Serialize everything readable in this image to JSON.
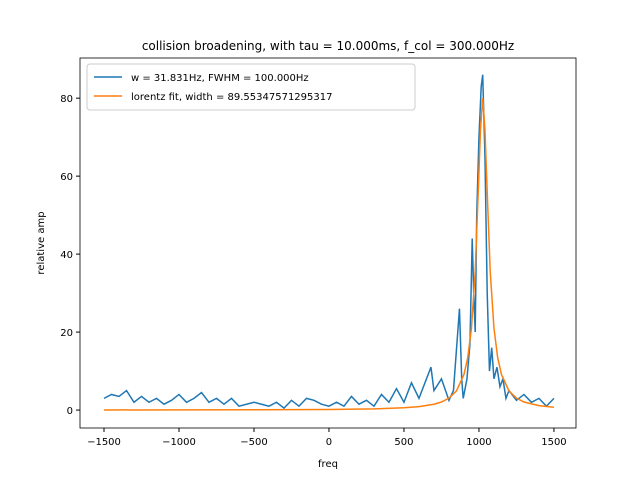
{
  "chart_data": {
    "type": "line",
    "title": "collision broadening, with tau = 10.000ms, f_col = 300.000Hz",
    "x_label": "freq",
    "y_label": "relative amp",
    "xlim": [
      -1660,
      1647
    ],
    "ylim": [
      -4.6,
      90.3
    ],
    "xticks": [
      {
        "value": -1500,
        "label": "−1500"
      },
      {
        "value": -1000,
        "label": "−1000"
      },
      {
        "value": -500,
        "label": "−500"
      },
      0,
      500,
      1000,
      1500
    ],
    "yticks": [
      0,
      20,
      40,
      60,
      80
    ],
    "legend": "upper left",
    "series": [
      {
        "name": "w = 31.831Hz, FWHM = 100.000Hz",
        "color": "#1f77b4",
        "x": [
          -1500,
          -1450,
          -1400,
          -1350,
          -1300,
          -1250,
          -1200,
          -1150,
          -1100,
          -1050,
          -1000,
          -950,
          -900,
          -850,
          -800,
          -750,
          -700,
          -650,
          -600,
          -550,
          -500,
          -450,
          -400,
          -350,
          -300,
          -250,
          -200,
          -150,
          -100,
          -50,
          0,
          50,
          100,
          150,
          200,
          250,
          300,
          350,
          400,
          450,
          500,
          550,
          600,
          650,
          680,
          700,
          750,
          800,
          830,
          870,
          885,
          895,
          920,
          940,
          955,
          965,
          975,
          985,
          1000,
          1015,
          1025,
          1040,
          1055,
          1070,
          1085,
          1100,
          1120,
          1140,
          1160,
          1180,
          1200,
          1250,
          1300,
          1350,
          1400,
          1450,
          1500
        ],
        "values": [
          3,
          4,
          3.5,
          5,
          2,
          3.5,
          2,
          3,
          1.5,
          2.5,
          4,
          2,
          3,
          4.5,
          2,
          3,
          1.5,
          3,
          1,
          1.5,
          2,
          1.5,
          1,
          2,
          0.5,
          2.5,
          1,
          3,
          2.5,
          1.5,
          1,
          2,
          1,
          3.5,
          1.5,
          2.5,
          1,
          4,
          2,
          5.5,
          2,
          7,
          3,
          8,
          11,
          5,
          8,
          2.5,
          5,
          26,
          8,
          3,
          8,
          17,
          44,
          30,
          20,
          50,
          70,
          83,
          86,
          65,
          30,
          10,
          16,
          8,
          11,
          6,
          8,
          3,
          5,
          2.5,
          4,
          2,
          3,
          1,
          3
        ]
      },
      {
        "name": "lorentz fit, width = 89.55347571295317",
        "color": "#ff7f0e",
        "x": [
          -1500,
          -1000,
          -500,
          0,
          300,
          500,
          600,
          700,
          750,
          800,
          850,
          900,
          925,
          950,
          975,
          1000,
          1010,
          1025,
          1040,
          1050,
          1075,
          1100,
          1125,
          1150,
          1200,
          1250,
          1300,
          1400,
          1500
        ],
        "values": [
          0.03,
          0.04,
          0.07,
          0.15,
          0.3,
          0.58,
          0.88,
          1.49,
          2.07,
          3.05,
          4.92,
          9.11,
          13.4,
          21.0,
          35.6,
          61.0,
          71.9,
          80,
          71.9,
          61.0,
          35.6,
          21.0,
          13.4,
          9.11,
          4.92,
          3.05,
          2.07,
          1.13,
          0.71
        ]
      }
    ]
  }
}
